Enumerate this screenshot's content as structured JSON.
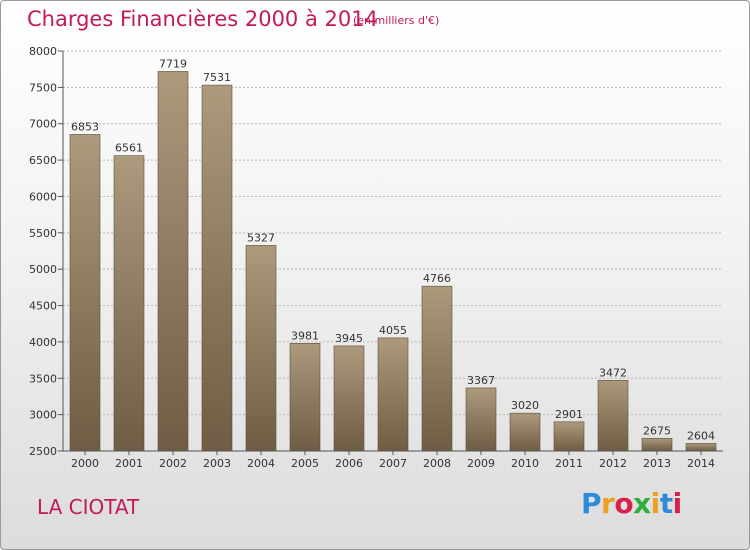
{
  "header": {
    "title": "Charges Financières 2000 à 2014",
    "subtitle": "(en milliers d'€)"
  },
  "footer": {
    "place": "LA CIOTAT",
    "logo": "Proxiti"
  },
  "colors": {
    "title": "#c21a5a",
    "bar_top": "#ad9a7d",
    "bar_bottom": "#6e5d44",
    "axis": "#555555",
    "grid": "#b8b8b8"
  },
  "chart_data": {
    "type": "bar",
    "title": "Charges Financières 2000 à 2014",
    "subtitle": "(en milliers d'€)",
    "categories": [
      "2000",
      "2001",
      "2002",
      "2003",
      "2004",
      "2005",
      "2006",
      "2007",
      "2008",
      "2009",
      "2010",
      "2011",
      "2012",
      "2013",
      "2014"
    ],
    "values": [
      6853,
      6561,
      7719,
      7531,
      5327,
      3981,
      3945,
      4055,
      4766,
      3367,
      3020,
      2901,
      3472,
      2675,
      2604
    ],
    "ylim": [
      2500,
      8000
    ],
    "yticks": [
      2500,
      3000,
      3500,
      4000,
      4500,
      5000,
      5500,
      6000,
      6500,
      7000,
      7500,
      8000
    ],
    "grid": true,
    "data_labels": true
  }
}
